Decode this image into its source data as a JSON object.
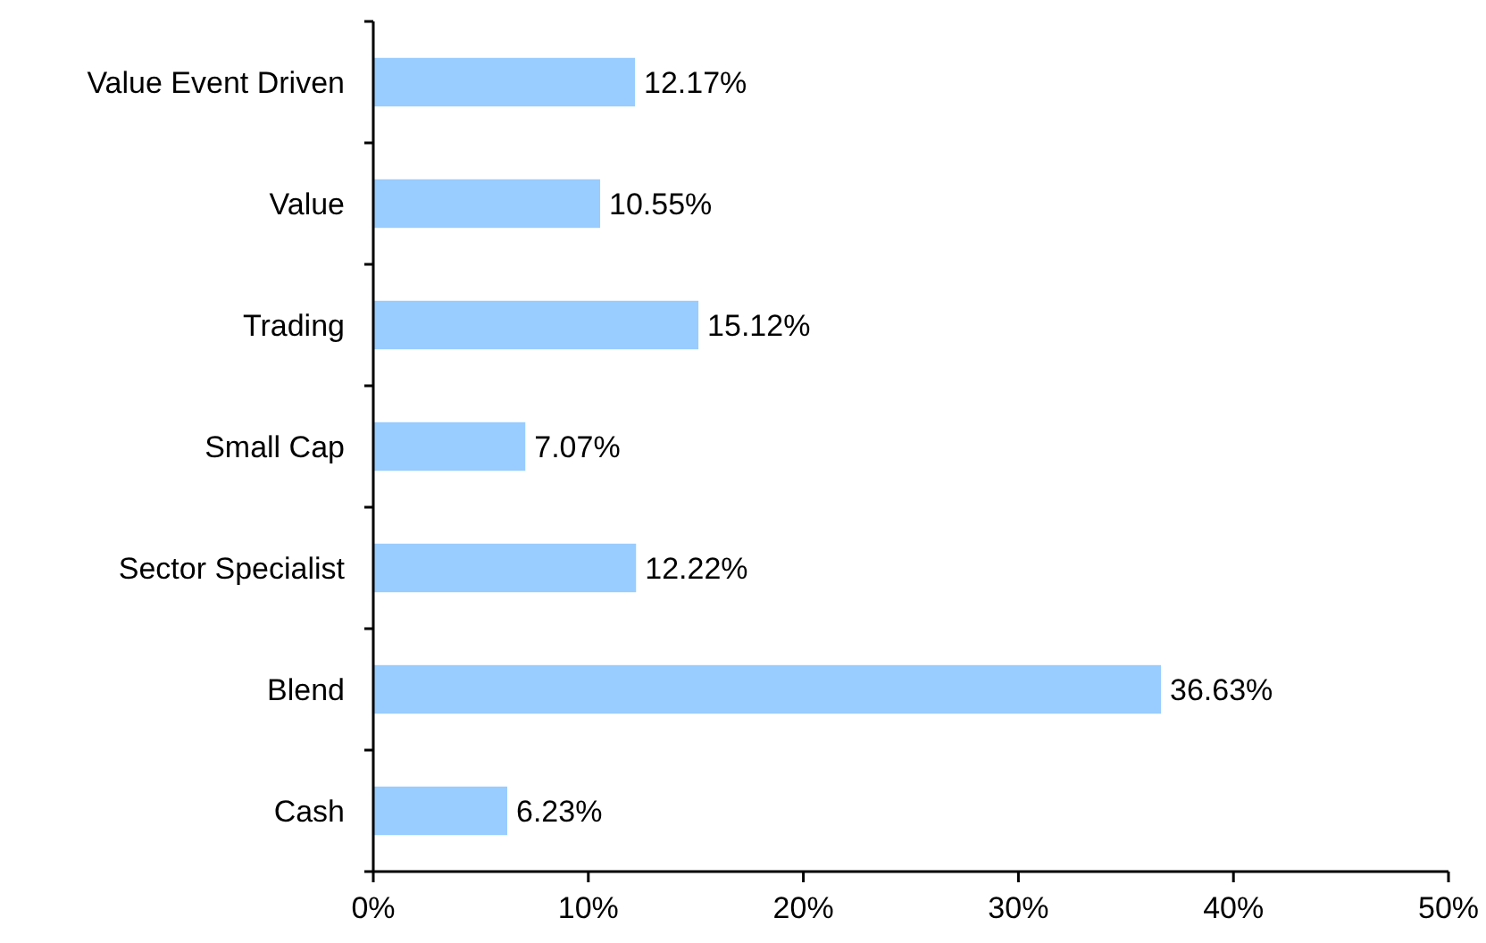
{
  "chart_data": {
    "type": "bar",
    "orientation": "horizontal",
    "categories": [
      "Value Event Driven",
      "Value",
      "Trading",
      "Small Cap",
      "Sector Specialist",
      "Blend",
      "Cash"
    ],
    "values": [
      12.17,
      10.55,
      15.12,
      7.07,
      12.22,
      36.63,
      6.23
    ],
    "value_labels": [
      "12.17%",
      "10.55%",
      "15.12%",
      "7.07%",
      "12.22%",
      "36.63%",
      "6.23%"
    ],
    "color": "#99ccff",
    "xlim": [
      0,
      50
    ],
    "xticks": [
      {
        "value": 0,
        "label": "0%"
      },
      {
        "value": 10,
        "label": "10%"
      },
      {
        "value": 20,
        "label": "20%"
      },
      {
        "value": 30,
        "label": "30%"
      },
      {
        "value": 40,
        "label": "40%"
      },
      {
        "value": 50,
        "label": "50%"
      }
    ],
    "grid": false
  }
}
